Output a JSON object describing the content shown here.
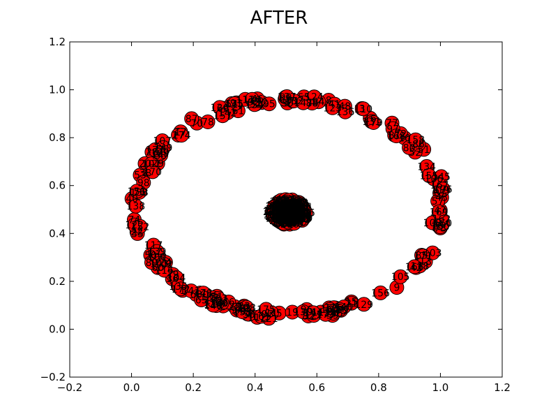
{
  "chart_data": {
    "type": "scatter",
    "title": "AFTER",
    "xlabel": "",
    "ylabel": "",
    "xlim": [
      -0.2,
      1.2
    ],
    "ylim": [
      -0.2,
      1.2
    ],
    "x_ticks": [
      "−0.2",
      "0.0",
      "0.2",
      "0.4",
      "0.6",
      "0.8",
      "1.0",
      "1.2"
    ],
    "y_ticks": [
      "−0.2",
      "0.0",
      "0.2",
      "0.4",
      "0.6",
      "0.8",
      "1.0",
      "1.2"
    ],
    "grid": false,
    "marker_color": "#ff0000",
    "marker_edge_color": "#000000",
    "clusters": [
      {
        "shape": "ring",
        "center_x": 0.51,
        "center_y": 0.51,
        "radius_x": 0.49,
        "radius_y": 0.45,
        "points": 180
      },
      {
        "shape": "cluster",
        "center_x": 0.51,
        "center_y": 0.49,
        "radius_x": 0.055,
        "radius_y": 0.055,
        "points": 160
      }
    ]
  }
}
